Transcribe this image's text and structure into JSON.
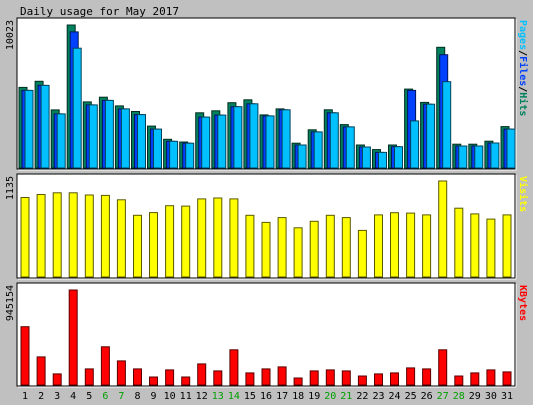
{
  "title": "Daily usage for May 2017",
  "colors": {
    "background": "#c0c0c0",
    "plot_background": "#ffffff",
    "hits": "#00805c",
    "files": "#0040ff",
    "pages": "#00c0ff",
    "visits": "#ffff00",
    "kbytes": "#ff0000",
    "weekend_label": "#00a000",
    "weekday_label": "#000000"
  },
  "days": [
    "1",
    "2",
    "3",
    "4",
    "5",
    "6",
    "7",
    "8",
    "9",
    "10",
    "11",
    "12",
    "13",
    "14",
    "15",
    "16",
    "17",
    "18",
    "19",
    "20",
    "21",
    "22",
    "23",
    "24",
    "25",
    "26",
    "27",
    "28",
    "29",
    "30",
    "31"
  ],
  "weekend_days": [
    "6",
    "7",
    "13",
    "14",
    "20",
    "21",
    "27",
    "28"
  ],
  "chart_data": [
    {
      "type": "bar",
      "title": "Daily usage for May 2017",
      "panel": "hits_files_pages",
      "ylim": [
        0,
        10023
      ],
      "max_label": "10023",
      "legend_right": [
        {
          "text": "Pages",
          "color": "#00c0ff"
        },
        {
          "text": "/",
          "color": "#000000"
        },
        {
          "text": "Files",
          "color": "#0040ff"
        },
        {
          "text": "/",
          "color": "#000000"
        },
        {
          "text": "Hits",
          "color": "#00805c"
        }
      ],
      "categories": [
        "1",
        "2",
        "3",
        "4",
        "5",
        "6",
        "7",
        "8",
        "9",
        "10",
        "11",
        "12",
        "13",
        "14",
        "15",
        "16",
        "17",
        "18",
        "19",
        "20",
        "21",
        "22",
        "23",
        "24",
        "25",
        "26",
        "27",
        "28",
        "29",
        "30",
        "31"
      ],
      "series": [
        {
          "name": "Hits",
          "color": "#00805c",
          "values": [
            5650,
            6080,
            4070,
            10023,
            4630,
            4960,
            4350,
            3960,
            2940,
            2010,
            1820,
            3870,
            4010,
            4580,
            4780,
            3720,
            4140,
            1740,
            2680,
            4080,
            3040,
            1610,
            1290,
            1610,
            5530,
            4600,
            8460,
            1670,
            1670,
            1880,
            2900
          ]
        },
        {
          "name": "Files",
          "color": "#0040ff",
          "values": [
            5440,
            5790,
            3790,
            9540,
            4420,
            4740,
            4140,
            3740,
            2730,
            1870,
            1740,
            3570,
            3710,
            4300,
            4500,
            3650,
            4080,
            1610,
            2530,
            3870,
            2880,
            1470,
            1090,
            1490,
            5440,
            4470,
            7940,
            1540,
            1540,
            1750,
            2730
          ]
        },
        {
          "name": "Pages",
          "color": "#00c0ff",
          "values": [
            5440,
            5790,
            3790,
            8400,
            4420,
            4740,
            4140,
            3740,
            2730,
            1870,
            1740,
            3570,
            3710,
            4300,
            4500,
            3650,
            4080,
            1610,
            2530,
            3870,
            2880,
            1470,
            1090,
            1490,
            3300,
            4470,
            6050,
            1540,
            1540,
            1750,
            2730
          ]
        }
      ]
    },
    {
      "type": "bar",
      "panel": "visits",
      "ylim": [
        0,
        1135
      ],
      "max_label": "1135",
      "legend_right": [
        {
          "text": "Visits",
          "color": "#ffff00"
        }
      ],
      "categories": [
        "1",
        "2",
        "3",
        "4",
        "5",
        "6",
        "7",
        "8",
        "9",
        "10",
        "11",
        "12",
        "13",
        "14",
        "15",
        "16",
        "17",
        "18",
        "19",
        "20",
        "21",
        "22",
        "23",
        "24",
        "25",
        "26",
        "27",
        "28",
        "29",
        "30",
        "31"
      ],
      "series": [
        {
          "name": "Visits",
          "color": "#ffff00",
          "values": [
            940,
            975,
            995,
            995,
            970,
            965,
            913,
            730,
            761,
            843,
            838,
            923,
            934,
            923,
            730,
            645,
            702,
            582,
            658,
            730,
            702,
            551,
            734,
            760,
            755,
            734,
            1135,
            814,
            746,
            684,
            734
          ]
        }
      ]
    },
    {
      "type": "bar",
      "panel": "kbytes",
      "ylim": [
        0,
        945154
      ],
      "max_label": "945154",
      "legend_right": [
        {
          "text": "KBytes",
          "color": "#ff0000"
        }
      ],
      "categories": [
        "1",
        "2",
        "3",
        "4",
        "5",
        "6",
        "7",
        "8",
        "9",
        "10",
        "11",
        "12",
        "13",
        "14",
        "15",
        "16",
        "17",
        "18",
        "19",
        "20",
        "21",
        "22",
        "23",
        "24",
        "25",
        "26",
        "27",
        "28",
        "29",
        "30",
        "31"
      ],
      "series": [
        {
          "name": "KBytes",
          "color": "#ff0000",
          "values": [
            580000,
            280000,
            110000,
            945154,
            160000,
            380000,
            240000,
            160000,
            80000,
            150000,
            80000,
            210000,
            140000,
            350000,
            120000,
            160000,
            180000,
            70000,
            140000,
            150000,
            140000,
            90000,
            110000,
            120000,
            170000,
            160000,
            350000,
            90000,
            120000,
            150000,
            130000
          ]
        }
      ]
    }
  ]
}
